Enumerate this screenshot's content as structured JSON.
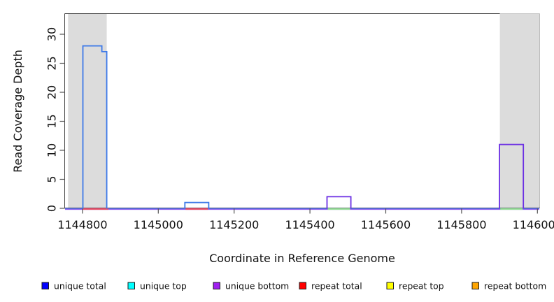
{
  "chart_data": {
    "type": "line",
    "title": "",
    "xlabel": "Coordinate in Reference Genome",
    "ylabel": "Read Coverage Depth",
    "xlim": [
      1144754,
      1146005
    ],
    "ylim": [
      0,
      33.5
    ],
    "x_ticks": [
      1144800,
      1145000,
      1145200,
      1145400,
      1145600,
      1145800,
      1146000
    ],
    "y_ticks": [
      0,
      5,
      10,
      15,
      20,
      25,
      30
    ],
    "grid": false,
    "legend_position": "bottom",
    "highlight_regions": [
      {
        "start": 1144762,
        "end": 1144864,
        "color": "#dcdcdc"
      },
      {
        "start": 1145901,
        "end": 1146005,
        "color": "#dcdcdc"
      }
    ],
    "series": [
      {
        "name": "unique total",
        "legend_color": "#0000ff",
        "line_color": "#3d79e8",
        "segments": [
          {
            "start": 1144801,
            "end": 1144851,
            "depth": 28
          },
          {
            "start": 1144851,
            "end": 1144864,
            "depth": 27
          },
          {
            "start": 1145070,
            "end": 1145133,
            "depth": 1
          }
        ]
      },
      {
        "name": "unique top",
        "legend_color": "#00ffff",
        "line_color": "#00e5e5",
        "segments": []
      },
      {
        "name": "unique bottom",
        "legend_color": "#a020f0",
        "line_color": "#6b2fe3",
        "segments": [
          {
            "start": 1145445,
            "end": 1145508,
            "depth": 2
          },
          {
            "start": 1145900,
            "end": 1145963,
            "depth": 11
          }
        ]
      },
      {
        "name": "repeat total",
        "legend_color": "#ff0000",
        "line_color": "#e8506a",
        "segments": []
      },
      {
        "name": "repeat top",
        "legend_color": "#ffff00",
        "line_color": "#e8e800",
        "segments": []
      },
      {
        "name": "repeat bottom",
        "legend_color": "#ffa500",
        "line_color": "#f0a030",
        "segments": []
      }
    ],
    "zero_line_segments": [
      {
        "start": 1144754,
        "end": 1146005,
        "top_color": "#5570e8",
        "bottom_color": "#8a5cf0"
      },
      {
        "start": 1144801,
        "end": 1144868,
        "top_color": "#e8506a",
        "bottom_color": "#e8506a"
      },
      {
        "start": 1145072,
        "end": 1145131,
        "top_color": "#e8506a",
        "bottom_color": "#e8506a"
      },
      {
        "start": 1145447,
        "end": 1145506,
        "top_color": "#98e098",
        "bottom_color": "#98e098"
      },
      {
        "start": 1145902,
        "end": 1145961,
        "top_color": "#98e098",
        "bottom_color": "#98e098"
      }
    ]
  }
}
